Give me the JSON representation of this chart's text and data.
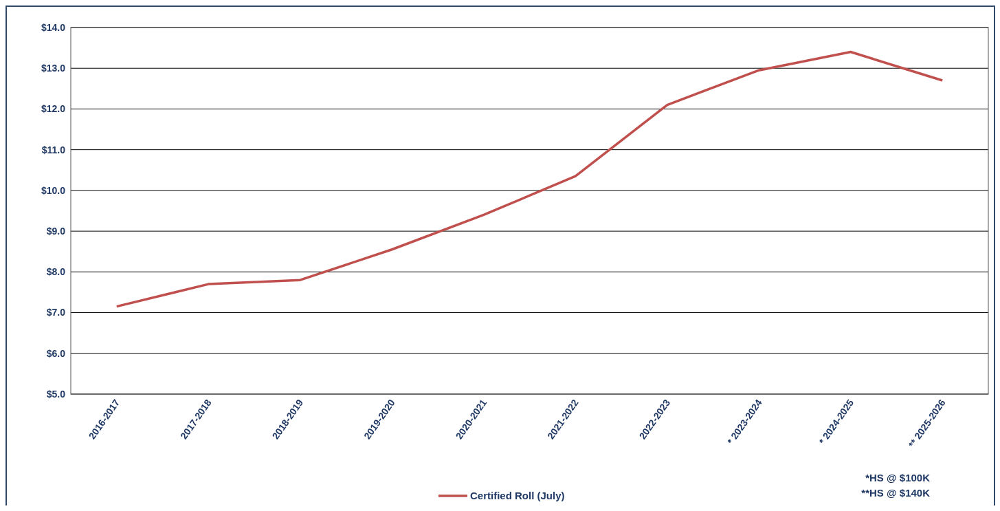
{
  "chart_data": {
    "type": "line",
    "categories": [
      "2016-2017",
      "2017-2018",
      "2018-2019",
      "2019-2020",
      "2020-2021",
      "2021-2022",
      "2022-2023",
      "* 2023-2024",
      "* 2024-2025",
      "** 2025-2026"
    ],
    "series": [
      {
        "name": "Certified Roll (July)",
        "color": "#c0504d",
        "values": [
          7.15,
          7.7,
          7.8,
          8.55,
          9.4,
          10.35,
          12.1,
          12.95,
          13.4,
          12.7
        ]
      }
    ],
    "ylim": [
      5,
      14
    ],
    "yticks": [
      {
        "value": 5,
        "label": "$5.0"
      },
      {
        "value": 6,
        "label": "$6.0"
      },
      {
        "value": 7,
        "label": "$7.0"
      },
      {
        "value": 8,
        "label": "$8.0"
      },
      {
        "value": 9,
        "label": "$9.0"
      },
      {
        "value": 10,
        "label": "$10.0"
      },
      {
        "value": 11,
        "label": "$11.0"
      },
      {
        "value": 12,
        "label": "$12.0"
      },
      {
        "value": 13,
        "label": "$13.0"
      },
      {
        "value": 14,
        "label": "$14.0"
      }
    ],
    "grid": "y",
    "legend": "bottom",
    "marker": "none",
    "line_style": "solid",
    "annotations": [
      "*HS @ $100K",
      "**HS @ $140K"
    ]
  }
}
